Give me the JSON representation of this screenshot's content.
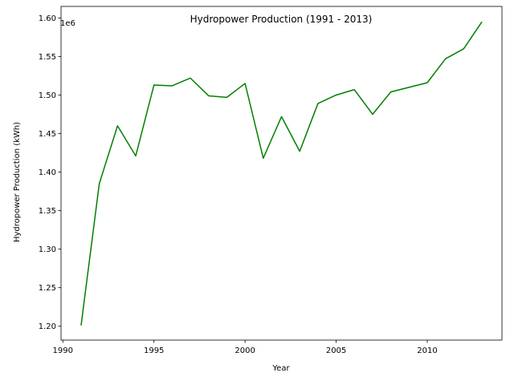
{
  "chart_data": {
    "type": "line",
    "title": "Hydropower Production (1991 - 2013)",
    "xlabel": "Year",
    "ylabel": "Hydropower Production (kWh)",
    "offset_label": "1e6",
    "xlim": [
      1989.9,
      2014.1
    ],
    "ylim": [
      1182000,
      1615000
    ],
    "xticks": [
      1990,
      1995,
      2000,
      2005,
      2010
    ],
    "xtick_labels": [
      "1990",
      "1995",
      "2000",
      "2005",
      "2010"
    ],
    "yticks": [
      1200000,
      1250000,
      1300000,
      1350000,
      1400000,
      1450000,
      1500000,
      1550000,
      1600000
    ],
    "ytick_labels": [
      "1.20",
      "1.25",
      "1.30",
      "1.35",
      "1.40",
      "1.45",
      "1.50",
      "1.55",
      "1.60"
    ],
    "grid": false,
    "series": [
      {
        "color": "#008000",
        "x": [
          1991,
          1992,
          1993,
          1994,
          1995,
          1996,
          1997,
          1998,
          1999,
          2000,
          2001,
          2002,
          2003,
          2004,
          2005,
          2006,
          2007,
          2008,
          2009,
          2010,
          2011,
          2012,
          2013
        ],
        "y": [
          1201000,
          1385000,
          1460000,
          1421000,
          1513000,
          1512000,
          1522000,
          1499000,
          1497000,
          1515000,
          1418000,
          1472000,
          1427000,
          1489000,
          1500000,
          1507000,
          1475000,
          1504000,
          1510000,
          1516000,
          1547000,
          1560000,
          1595000
        ]
      }
    ]
  }
}
